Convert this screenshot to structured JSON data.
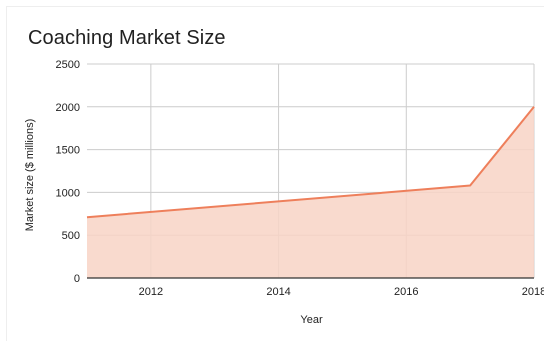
{
  "chart_data": {
    "type": "area",
    "title": "Coaching Market Size",
    "xlabel": "Year",
    "ylabel": "Market size ($ millions)",
    "x": [
      2011,
      2017,
      2018
    ],
    "values": [
      710,
      1080,
      2000
    ],
    "xlim": [
      2011,
      2018
    ],
    "ylim": [
      0,
      2500
    ],
    "xticks": [
      2012,
      2014,
      2016,
      2018
    ],
    "xtick_labels": [
      "2012",
      "2014",
      "2016",
      "2018"
    ],
    "yticks": [
      0,
      500,
      1000,
      1500,
      2000,
      2500
    ],
    "ytick_labels": [
      "0",
      "500",
      "1000",
      "1500",
      "2000",
      "2500"
    ],
    "grid": true,
    "legend": "none",
    "colors": {
      "line": "#ee7f5b",
      "fill": "#f8d3c6",
      "grid": "#cccccc",
      "baseline": "#333333"
    }
  }
}
